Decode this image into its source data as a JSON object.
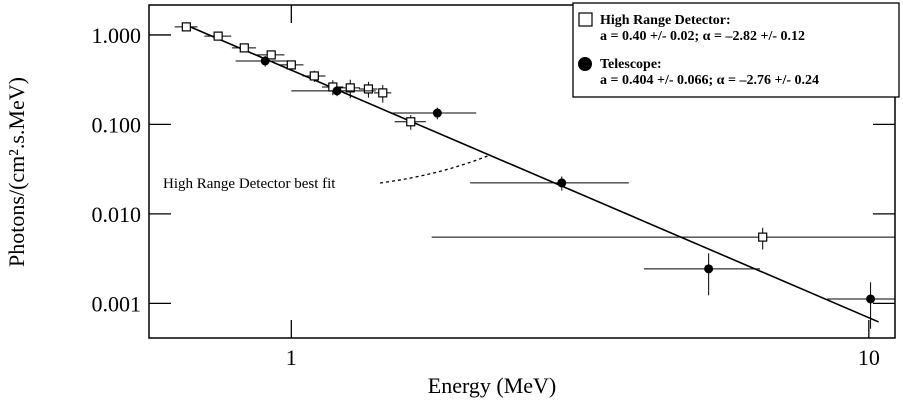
{
  "chart_data": {
    "type": "scatter",
    "xlabel": "Energy (MeV)",
    "ylabel": "Photons/(cm².s.MeV)",
    "xscale": "log",
    "yscale": "log",
    "xlim": [
      0.567,
      11.1
    ],
    "ylim": [
      0.00041,
      2.16
    ],
    "xticks": [
      1,
      10
    ],
    "yticks": [
      {
        "value": 1,
        "label": "1.000"
      },
      {
        "value": 0.1,
        "label": "0.100"
      },
      {
        "value": 0.01,
        "label": "0.010"
      },
      {
        "value": 0.001,
        "label": "0.001"
      }
    ],
    "legend": "upper right",
    "series": [
      {
        "name": "High Range Detector:",
        "legend_detail": "a = 0.40 +/- 0.02; α = –2.82 +/- 0.12",
        "marker": "square",
        "color": "#000000",
        "x": [
          0.658,
          0.747,
          0.829,
          0.923,
          1.0,
          1.096,
          1.18,
          1.265,
          1.36,
          1.44,
          1.61,
          6.55
        ],
        "values": [
          1.23,
          0.97,
          0.716,
          0.598,
          0.462,
          0.348,
          0.262,
          0.256,
          0.249,
          0.225,
          0.107,
          0.0055
        ],
        "xerr": [
          0.03,
          0.04,
          0.04,
          0.05,
          0.05,
          0.05,
          0.05,
          0.05,
          0.05,
          0.05,
          0.1,
          4.8
        ],
        "yerr": [
          0.05,
          0.05,
          0.05,
          0.06,
          0.05,
          0.05,
          0.05,
          0.06,
          0.05,
          0.05,
          0.02,
          0.0015
        ]
      },
      {
        "name": "Telescope:",
        "legend_detail": "a = 0.404 +/- 0.066; α = –2.76 +/- 0.24",
        "marker": "circle",
        "color": "#000000",
        "x": [
          0.901,
          1.2,
          1.79,
          2.94,
          5.28,
          10.07
        ],
        "values": [
          0.512,
          0.237,
          0.134,
          0.0222,
          0.00243,
          0.00112
        ],
        "xerr": [
          0.1,
          0.2,
          0.3,
          0.9,
          1.2,
          1.6
        ],
        "yerr": [
          0.07,
          0.03,
          0.02,
          0.004,
          0.0012,
          0.0006
        ]
      }
    ],
    "fit_line": {
      "x": [
        0.65,
        10.4
      ],
      "values": [
        1.33,
        0.00062
      ],
      "color": "#000000"
    },
    "annotation": "High Range Detector best fit"
  }
}
